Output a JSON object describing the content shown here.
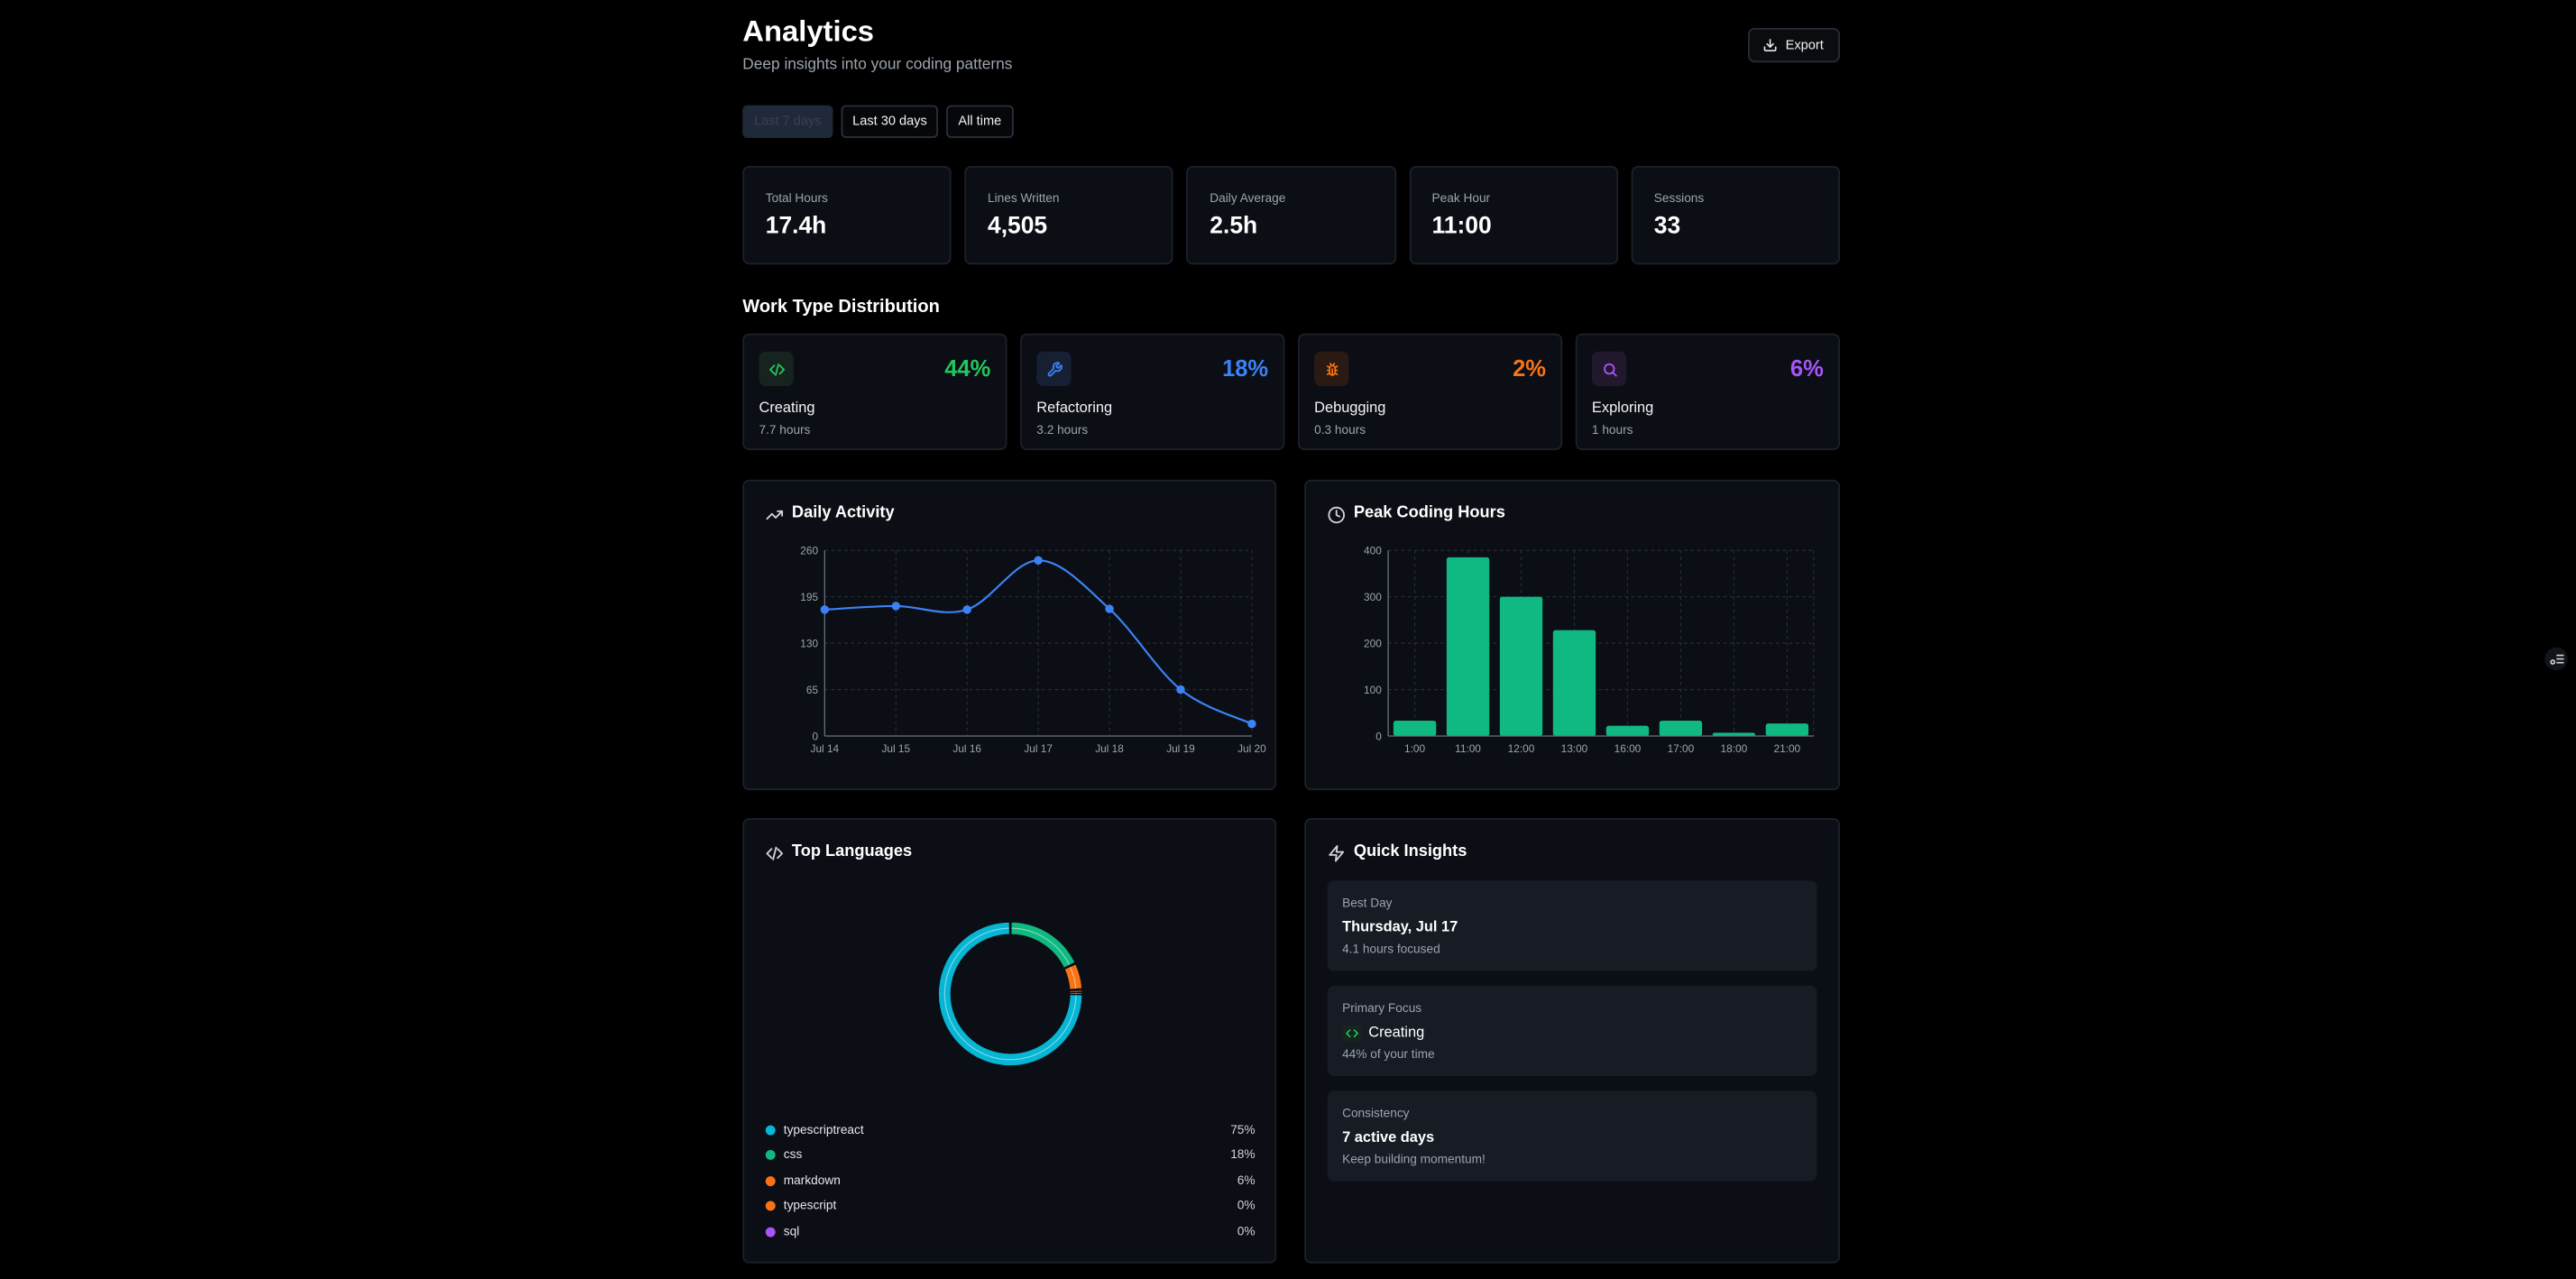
{
  "header": {
    "title": "Analytics",
    "subtitle": "Deep insights into your coding patterns",
    "export_label": "Export",
    "export_icon": "download-icon"
  },
  "range_filters": [
    {
      "label": "Last 7 days",
      "active": true
    },
    {
      "label": "Last 30 days",
      "active": false
    },
    {
      "label": "All time",
      "active": false
    }
  ],
  "stats": [
    {
      "label": "Total Hours",
      "value": "17.4h"
    },
    {
      "label": "Lines Written",
      "value": "4,505"
    },
    {
      "label": "Daily Average",
      "value": "2.5h"
    },
    {
      "label": "Peak Hour",
      "value": "11:00"
    },
    {
      "label": "Sessions",
      "value": "33"
    }
  ],
  "work_type": {
    "title": "Work Type Distribution",
    "items": [
      {
        "label": "Creating",
        "hours": "7.7 hours",
        "pct": "44%",
        "icon": "code-icon",
        "color": "#22c55e",
        "bg": "#17231e"
      },
      {
        "label": "Refactoring",
        "hours": "3.2 hours",
        "pct": "18%",
        "icon": "wrench-icon",
        "color": "#3b82f6",
        "bg": "#172033"
      },
      {
        "label": "Debugging",
        "hours": "0.3 hours",
        "pct": "2%",
        "icon": "bug-icon",
        "color": "#f97316",
        "bg": "#2a1a14"
      },
      {
        "label": "Exploring",
        "hours": "1 hours",
        "pct": "6%",
        "icon": "search-icon",
        "color": "#a855f7",
        "bg": "#21182e"
      }
    ]
  },
  "daily_activity": {
    "title": "Daily Activity",
    "icon": "trending-up-icon",
    "color": "#3b82f6"
  },
  "peak_hours": {
    "title": "Peak Coding Hours",
    "icon": "clock-icon",
    "color": "#10b981"
  },
  "chart_data": [
    {
      "type": "line",
      "x": [
        "Jul 14",
        "Jul 15",
        "Jul 16",
        "Jul 17",
        "Jul 18",
        "Jul 19",
        "Jul 20"
      ],
      "y": [
        177,
        182,
        177,
        246,
        178,
        65,
        17
      ],
      "yticks": [
        "0",
        "65",
        "130",
        "195",
        "260"
      ],
      "ylim": [
        0,
        260
      ],
      "grid": true
    },
    {
      "type": "bar",
      "categories": [
        "1:00",
        "11:00",
        "12:00",
        "13:00",
        "16:00",
        "17:00",
        "18:00",
        "21:00"
      ],
      "values": [
        33,
        385,
        300,
        228,
        22,
        33,
        7,
        27
      ],
      "yticks": [
        "0",
        "100",
        "200",
        "300",
        "400"
      ],
      "ylim": [
        0,
        400
      ],
      "grid": true
    }
  ],
  "languages": {
    "title": "Top Languages",
    "icon": "code-icon",
    "items": [
      {
        "name": "typescriptreact",
        "pct": "75%",
        "value": 75,
        "color": "#06b6d4"
      },
      {
        "name": "css",
        "pct": "18%",
        "value": 18,
        "color": "#10b981"
      },
      {
        "name": "markdown",
        "pct": "6%",
        "value": 6,
        "color": "#f97316"
      },
      {
        "name": "typescript",
        "pct": "0%",
        "value": 0.5,
        "color": "#f97316"
      },
      {
        "name": "sql",
        "pct": "0%",
        "value": 0.5,
        "color": "#a855f7"
      }
    ]
  },
  "insights": {
    "title": "Quick Insights",
    "icon": "zap-icon",
    "cards": [
      {
        "label": "Best Day",
        "value": "Thursday, Jul 17",
        "sub": "4.1 hours focused"
      },
      {
        "label": "Primary Focus",
        "value": "Creating",
        "sub": "44% of your time"
      },
      {
        "label": "Consistency",
        "value": "7 active days",
        "sub": "Keep building momentum!"
      }
    ]
  }
}
